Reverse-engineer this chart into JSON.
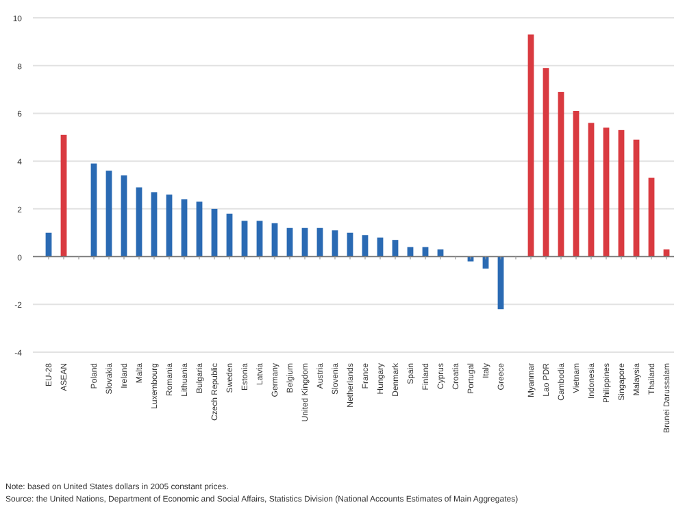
{
  "chart_data": {
    "type": "bar",
    "categories": [
      "EU-28",
      "ASEAN",
      null,
      "Poland",
      "Slovakia",
      "Ireland",
      "Malta",
      "Luxembourg",
      "Romania",
      "Lithuania",
      "Bulgaria",
      "Czech Republic",
      "Sweden",
      "Estonia",
      "Latvia",
      "Germany",
      "Belgium",
      "United Kingdom",
      "Austria",
      "Slovenia",
      "Netherlands",
      "France",
      "Hungary",
      "Denmark",
      "Spain",
      "Finland",
      "Cyprus",
      "Croatia",
      "Portugal",
      "Italy",
      "Greece",
      null,
      "Myanmar",
      "Lao PDR",
      "Cambodia",
      "Vietnam",
      "Indonesia",
      "Philippines",
      "Singapore",
      "Malaysia",
      "Thailand",
      "Brunei Darussalam"
    ],
    "values": [
      1.0,
      5.1,
      null,
      3.9,
      3.6,
      3.4,
      2.9,
      2.7,
      2.6,
      2.4,
      2.3,
      2.0,
      1.8,
      1.5,
      1.5,
      1.4,
      1.2,
      1.2,
      1.2,
      1.1,
      1.0,
      0.9,
      0.8,
      0.7,
      0.4,
      0.4,
      0.3,
      0.0,
      -0.2,
      -0.5,
      -2.2,
      null,
      9.3,
      7.9,
      6.9,
      6.1,
      5.6,
      5.4,
      5.3,
      4.9,
      3.3,
      0.3
    ],
    "colors": [
      "#2a6ab3",
      "#d93a40",
      null,
      "#2a6ab3",
      "#2a6ab3",
      "#2a6ab3",
      "#2a6ab3",
      "#2a6ab3",
      "#2a6ab3",
      "#2a6ab3",
      "#2a6ab3",
      "#2a6ab3",
      "#2a6ab3",
      "#2a6ab3",
      "#2a6ab3",
      "#2a6ab3",
      "#2a6ab3",
      "#2a6ab3",
      "#2a6ab3",
      "#2a6ab3",
      "#2a6ab3",
      "#2a6ab3",
      "#2a6ab3",
      "#2a6ab3",
      "#2a6ab3",
      "#2a6ab3",
      "#2a6ab3",
      "#2a6ab3",
      "#2a6ab3",
      "#2a6ab3",
      "#2a6ab3",
      null,
      "#d93a40",
      "#d93a40",
      "#d93a40",
      "#d93a40",
      "#d93a40",
      "#d93a40",
      "#d93a40",
      "#d93a40",
      "#d93a40",
      "#d93a40"
    ],
    "ylim": [
      -4,
      10
    ],
    "yticks": [
      -4,
      -2,
      0,
      2,
      4,
      6,
      8,
      10
    ],
    "grid": "y",
    "annotations": [
      "Note: based on United States dollars in 2005 constant prices.",
      "Source: the United Nations, Department of Economic and Social Affairs, Statistics Division (National Accounts Estimates of Main Aggregates)"
    ]
  }
}
